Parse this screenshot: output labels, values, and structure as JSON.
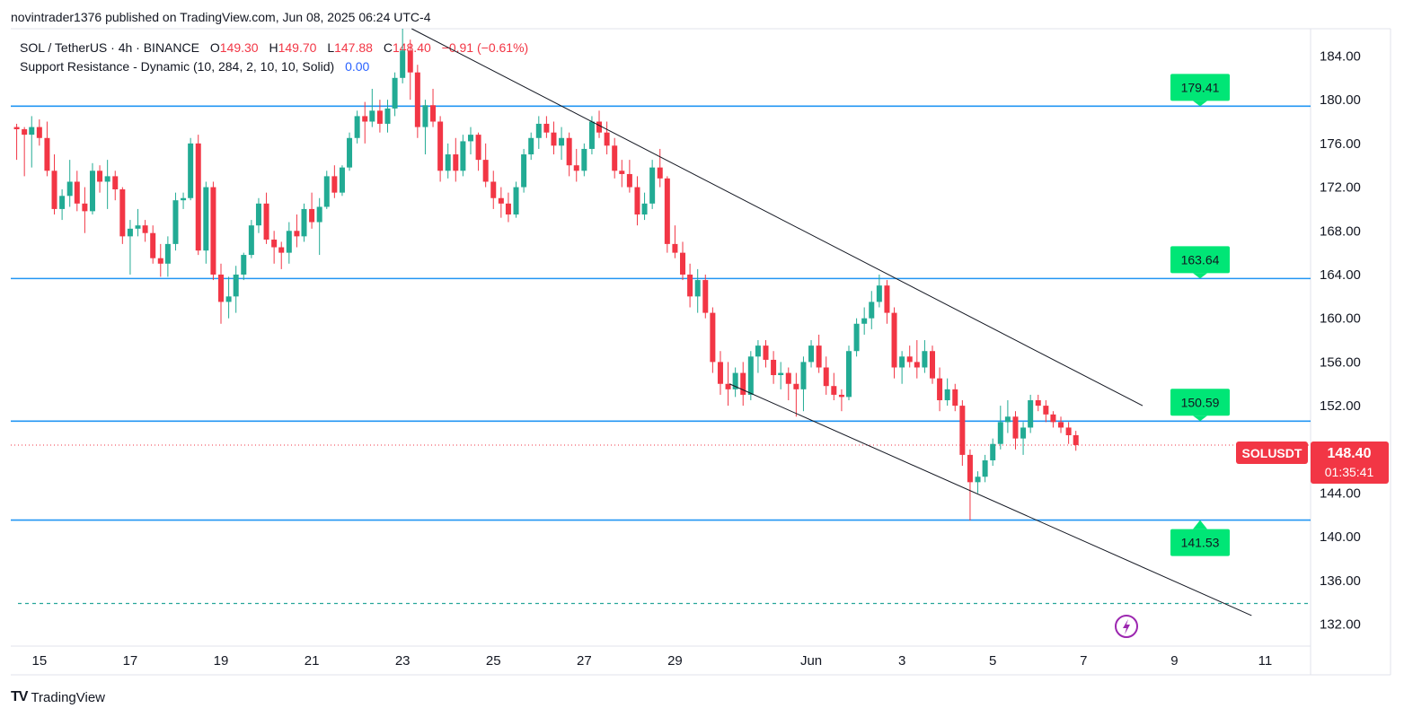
{
  "header": {
    "published": "novintrader1376 published on TradingView.com, Jun 08, 2025 06:24 UTC-4"
  },
  "legend": {
    "symbol": "SOL / TetherUS · 4h · BINANCE",
    "o_label": "O",
    "o_value": "149.30",
    "h_label": "H",
    "h_value": "149.70",
    "l_label": "L",
    "l_value": "147.88",
    "c_label": "C",
    "c_value": "148.40",
    "change": "−0.91 (−0.61%)",
    "indicator": "Support Resistance - Dynamic (10, 284, 2, 10, 10, Solid)",
    "indicator_value": "0.00"
  },
  "footer": {
    "logo_text": "TV",
    "brand": "TradingView"
  },
  "chart_data": {
    "type": "candlestick",
    "symbol": "SOLUSDT",
    "interval": "4h",
    "ylim": [
      130.0,
      186.5
    ],
    "y_ticks": [
      132,
      136,
      140,
      144,
      148,
      152,
      156,
      160,
      164,
      168,
      172,
      176,
      180,
      184
    ],
    "y_tick_labels": [
      "132.00",
      "136.00",
      "140.00",
      "144.00",
      "148.00",
      "152.00",
      "156.00",
      "160.00",
      "164.00",
      "168.00",
      "172.00",
      "176.00",
      "180.00",
      "184.00"
    ],
    "x_ticks": [
      {
        "label": "15",
        "day": 15
      },
      {
        "label": "17",
        "day": 17
      },
      {
        "label": "19",
        "day": 19
      },
      {
        "label": "21",
        "day": 21
      },
      {
        "label": "23",
        "day": 23
      },
      {
        "label": "25",
        "day": 25
      },
      {
        "label": "27",
        "day": 27
      },
      {
        "label": "29",
        "day": 29
      },
      {
        "label": "Jun",
        "day": 32
      },
      {
        "label": "3",
        "day": 34
      },
      {
        "label": "5",
        "day": 36
      },
      {
        "label": "7",
        "day": 38
      },
      {
        "label": "9",
        "day": 40
      },
      {
        "label": "11",
        "day": 42
      }
    ],
    "levels": [
      {
        "value": 179.41,
        "label": "179.41",
        "arrow": "down"
      },
      {
        "value": 163.64,
        "label": "163.64",
        "arrow": "down"
      },
      {
        "value": 150.59,
        "label": "150.59",
        "arrow": "down"
      },
      {
        "value": 141.53,
        "label": "141.53",
        "arrow": "up"
      }
    ],
    "dashed_level": 133.9,
    "trendlines": [
      {
        "from": {
          "day": 23.2,
          "price": 186.5
        },
        "to": {
          "day": 39.3,
          "price": 152.0
        }
      },
      {
        "from": {
          "day": 30.2,
          "price": 154.0
        },
        "to": {
          "day": 41.7,
          "price": 132.8
        }
      }
    ],
    "last_price": {
      "value": 148.4,
      "label": "SOLUSDT",
      "price_label": "148.40",
      "countdown": "01:35:41"
    },
    "candles": [
      [
        14.5,
        177.5,
        177.8,
        174.5,
        177.3
      ],
      [
        14.67,
        177.3,
        177.5,
        173.0,
        176.8
      ],
      [
        14.83,
        176.8,
        178.5,
        173.8,
        177.5
      ],
      [
        15.0,
        177.5,
        178.2,
        175.8,
        176.5
      ],
      [
        15.17,
        176.5,
        178.0,
        173.0,
        173.5
      ],
      [
        15.33,
        173.5,
        175.0,
        169.5,
        170.0
      ],
      [
        15.5,
        170.0,
        171.8,
        169.0,
        171.2
      ],
      [
        15.67,
        171.2,
        174.5,
        170.2,
        172.5
      ],
      [
        15.83,
        172.5,
        173.5,
        169.8,
        170.5
      ],
      [
        16.0,
        170.5,
        172.0,
        167.8,
        169.8
      ],
      [
        16.17,
        169.8,
        174.2,
        169.5,
        173.5
      ],
      [
        16.33,
        173.5,
        174.0,
        171.5,
        172.5
      ],
      [
        16.5,
        172.5,
        174.5,
        170.0,
        173.0
      ],
      [
        16.67,
        173.0,
        173.5,
        170.8,
        171.8
      ],
      [
        16.83,
        171.8,
        172.0,
        166.8,
        167.5
      ],
      [
        17.0,
        167.5,
        169.0,
        164.0,
        168.2
      ],
      [
        17.17,
        168.2,
        170.0,
        167.5,
        168.5
      ],
      [
        17.33,
        168.5,
        169.0,
        167.0,
        167.8
      ],
      [
        17.5,
        167.8,
        168.5,
        165.0,
        165.5
      ],
      [
        17.67,
        165.5,
        166.8,
        163.8,
        165.0
      ],
      [
        17.83,
        165.0,
        167.5,
        163.8,
        166.8
      ],
      [
        18.0,
        166.8,
        171.5,
        166.2,
        170.8
      ],
      [
        18.17,
        170.8,
        171.5,
        170.0,
        171.0
      ],
      [
        18.33,
        171.0,
        176.5,
        170.8,
        176.0
      ],
      [
        18.5,
        176.0,
        176.8,
        165.8,
        166.2
      ],
      [
        18.67,
        166.2,
        172.5,
        165.0,
        172.0
      ],
      [
        18.83,
        172.0,
        172.5,
        163.5,
        164.0
      ],
      [
        19.0,
        164.0,
        165.0,
        159.5,
        161.5
      ],
      [
        19.17,
        161.5,
        163.8,
        160.0,
        162.0
      ],
      [
        19.33,
        162.0,
        164.8,
        160.5,
        164.0
      ],
      [
        19.5,
        164.0,
        166.0,
        163.5,
        165.8
      ],
      [
        19.67,
        165.8,
        169.0,
        165.5,
        168.5
      ],
      [
        19.83,
        168.5,
        171.0,
        167.8,
        170.5
      ],
      [
        20.0,
        170.5,
        171.5,
        166.8,
        167.2
      ],
      [
        20.17,
        167.2,
        168.0,
        165.0,
        166.5
      ],
      [
        20.33,
        166.5,
        167.0,
        164.5,
        166.0
      ],
      [
        20.5,
        166.0,
        168.8,
        165.0,
        168.0
      ],
      [
        20.67,
        168.0,
        169.5,
        166.5,
        167.5
      ],
      [
        20.83,
        167.5,
        170.5,
        167.0,
        170.0
      ],
      [
        21.0,
        170.0,
        171.5,
        168.2,
        168.8
      ],
      [
        21.17,
        168.8,
        171.0,
        165.8,
        170.2
      ],
      [
        21.33,
        170.2,
        173.5,
        170.0,
        173.0
      ],
      [
        21.5,
        173.0,
        174.0,
        171.0,
        171.5
      ],
      [
        21.67,
        171.5,
        174.0,
        171.2,
        173.8
      ],
      [
        21.83,
        173.8,
        177.0,
        173.5,
        176.5
      ],
      [
        22.0,
        176.5,
        179.0,
        176.0,
        178.5
      ],
      [
        22.17,
        178.5,
        179.8,
        176.0,
        178.0
      ],
      [
        22.33,
        178.0,
        181.0,
        177.5,
        179.0
      ],
      [
        22.5,
        179.0,
        180.0,
        177.0,
        177.8
      ],
      [
        22.67,
        177.8,
        180.0,
        177.0,
        179.2
      ],
      [
        22.83,
        179.2,
        182.5,
        178.5,
        182.0
      ],
      [
        23.0,
        182.0,
        186.5,
        181.5,
        184.5
      ],
      [
        23.17,
        184.5,
        185.5,
        180.0,
        182.5
      ],
      [
        23.33,
        182.5,
        183.2,
        176.5,
        177.5
      ],
      [
        23.5,
        177.5,
        180.0,
        175.0,
        179.5
      ],
      [
        23.67,
        179.5,
        181.0,
        177.5,
        178.0
      ],
      [
        23.83,
        178.0,
        178.5,
        172.5,
        173.5
      ],
      [
        24.0,
        173.5,
        176.0,
        172.8,
        175.0
      ],
      [
        24.17,
        175.0,
        176.5,
        172.5,
        173.5
      ],
      [
        24.33,
        173.5,
        176.8,
        173.0,
        176.2
      ],
      [
        24.5,
        176.2,
        177.5,
        175.0,
        176.8
      ],
      [
        24.67,
        176.8,
        177.0,
        173.5,
        174.5
      ],
      [
        24.83,
        174.5,
        176.0,
        172.0,
        172.5
      ],
      [
        25.0,
        172.5,
        173.5,
        170.0,
        171.0
      ],
      [
        25.17,
        171.0,
        172.0,
        169.2,
        170.5
      ],
      [
        25.33,
        170.5,
        171.5,
        168.8,
        169.5
      ],
      [
        25.5,
        169.5,
        172.5,
        169.2,
        172.0
      ],
      [
        25.67,
        172.0,
        175.5,
        171.5,
        175.0
      ],
      [
        25.83,
        175.0,
        177.0,
        174.5,
        176.5
      ],
      [
        26.0,
        176.5,
        178.5,
        175.5,
        177.8
      ],
      [
        26.17,
        177.8,
        178.5,
        176.5,
        177.0
      ],
      [
        26.33,
        177.0,
        178.0,
        175.0,
        175.8
      ],
      [
        26.5,
        175.8,
        177.5,
        174.5,
        176.5
      ],
      [
        26.67,
        176.5,
        177.0,
        173.0,
        174.0
      ],
      [
        26.83,
        174.0,
        175.5,
        172.5,
        173.5
      ],
      [
        27.0,
        173.5,
        176.0,
        173.0,
        175.5
      ],
      [
        27.17,
        175.5,
        178.5,
        175.0,
        178.0
      ],
      [
        27.33,
        178.0,
        179.0,
        176.5,
        177.0
      ],
      [
        27.5,
        177.0,
        178.0,
        175.0,
        175.8
      ],
      [
        27.67,
        175.8,
        176.5,
        172.8,
        173.5
      ],
      [
        27.83,
        173.5,
        174.5,
        172.0,
        173.2
      ],
      [
        28.0,
        173.2,
        174.5,
        171.5,
        172.0
      ],
      [
        28.17,
        172.0,
        173.0,
        168.5,
        169.5
      ],
      [
        28.33,
        169.5,
        171.5,
        169.0,
        170.5
      ],
      [
        28.5,
        170.5,
        174.5,
        170.0,
        173.8
      ],
      [
        28.67,
        173.8,
        175.5,
        172.0,
        172.8
      ],
      [
        28.83,
        172.8,
        173.0,
        166.0,
        166.8
      ],
      [
        29.0,
        166.8,
        168.5,
        165.5,
        166.0
      ],
      [
        29.17,
        166.0,
        167.0,
        163.5,
        164.0
      ],
      [
        29.33,
        164.0,
        165.0,
        161.0,
        162.0
      ],
      [
        29.5,
        162.0,
        164.5,
        160.5,
        163.5
      ],
      [
        29.67,
        163.5,
        164.0,
        160.0,
        160.5
      ],
      [
        29.83,
        160.5,
        161.0,
        155.0,
        156.0
      ],
      [
        30.0,
        156.0,
        157.0,
        153.0,
        154.0
      ],
      [
        30.17,
        154.0,
        156.0,
        152.0,
        153.5
      ],
      [
        30.33,
        153.5,
        155.5,
        152.8,
        155.0
      ],
      [
        30.5,
        155.0,
        156.0,
        152.0,
        153.0
      ],
      [
        30.67,
        153.0,
        157.0,
        152.5,
        156.5
      ],
      [
        30.83,
        156.5,
        158.0,
        155.0,
        157.5
      ],
      [
        31.0,
        157.5,
        158.0,
        155.5,
        156.2
      ],
      [
        31.17,
        156.2,
        157.0,
        154.0,
        154.8
      ],
      [
        31.33,
        154.8,
        156.0,
        153.5,
        155.0
      ],
      [
        31.5,
        155.0,
        155.5,
        152.5,
        154.0
      ],
      [
        31.67,
        154.0,
        155.0,
        151.0,
        153.5
      ],
      [
        31.83,
        153.5,
        156.5,
        151.5,
        156.0
      ],
      [
        32.0,
        156.0,
        158.0,
        155.5,
        157.5
      ],
      [
        32.17,
        157.5,
        158.5,
        155.0,
        155.5
      ],
      [
        32.33,
        155.5,
        156.5,
        153.0,
        153.8
      ],
      [
        32.5,
        153.8,
        155.0,
        152.5,
        153.0
      ],
      [
        32.67,
        153.0,
        153.5,
        151.5,
        152.8
      ],
      [
        32.83,
        152.8,
        157.5,
        152.5,
        157.0
      ],
      [
        33.0,
        157.0,
        160.0,
        156.5,
        159.5
      ],
      [
        33.17,
        159.5,
        161.0,
        158.5,
        160.0
      ],
      [
        33.33,
        160.0,
        162.5,
        159.0,
        161.5
      ],
      [
        33.5,
        161.5,
        164.0,
        161.0,
        163.0
      ],
      [
        33.67,
        163.0,
        163.5,
        159.5,
        160.5
      ],
      [
        33.83,
        160.5,
        161.0,
        154.5,
        155.5
      ],
      [
        34.0,
        155.5,
        157.0,
        154.0,
        156.5
      ],
      [
        34.17,
        156.5,
        157.5,
        155.5,
        156.0
      ],
      [
        34.33,
        156.0,
        158.0,
        154.5,
        155.5
      ],
      [
        34.5,
        155.5,
        158.0,
        155.0,
        157.0
      ],
      [
        34.67,
        157.0,
        157.5,
        154.0,
        154.5
      ],
      [
        34.83,
        154.5,
        155.5,
        151.5,
        152.5
      ],
      [
        35.0,
        152.5,
        154.5,
        152.0,
        153.5
      ],
      [
        35.17,
        153.5,
        154.0,
        151.5,
        152.0
      ],
      [
        35.33,
        152.0,
        152.5,
        146.5,
        147.5
      ],
      [
        35.5,
        147.5,
        148.0,
        141.5,
        145.0
      ],
      [
        35.67,
        145.0,
        146.0,
        144.0,
        145.5
      ],
      [
        35.83,
        145.5,
        147.5,
        145.0,
        147.0
      ],
      [
        36.0,
        147.0,
        149.0,
        146.5,
        148.5
      ],
      [
        36.17,
        148.5,
        152.0,
        148.0,
        150.5
      ],
      [
        36.33,
        150.5,
        152.5,
        149.5,
        151.0
      ],
      [
        36.5,
        151.0,
        151.5,
        148.0,
        149.0
      ],
      [
        36.67,
        149.0,
        150.5,
        147.5,
        150.0
      ],
      [
        36.83,
        150.0,
        153.0,
        149.5,
        152.5
      ],
      [
        37.0,
        152.5,
        153.0,
        151.5,
        152.0
      ],
      [
        37.17,
        152.0,
        152.5,
        150.5,
        151.2
      ],
      [
        37.33,
        151.2,
        151.5,
        150.0,
        150.5
      ],
      [
        37.5,
        150.5,
        151.0,
        149.5,
        150.0
      ],
      [
        37.67,
        150.0,
        150.5,
        148.5,
        149.3
      ],
      [
        37.83,
        149.3,
        149.7,
        147.88,
        148.4
      ]
    ]
  },
  "colors": {
    "up": "#22ab94",
    "down": "#f23645",
    "level_line": "#2196f3",
    "badge": "#00e676",
    "trendline": "#131722",
    "dashed": "#26a69a",
    "grid_border": "#e0e3eb"
  }
}
